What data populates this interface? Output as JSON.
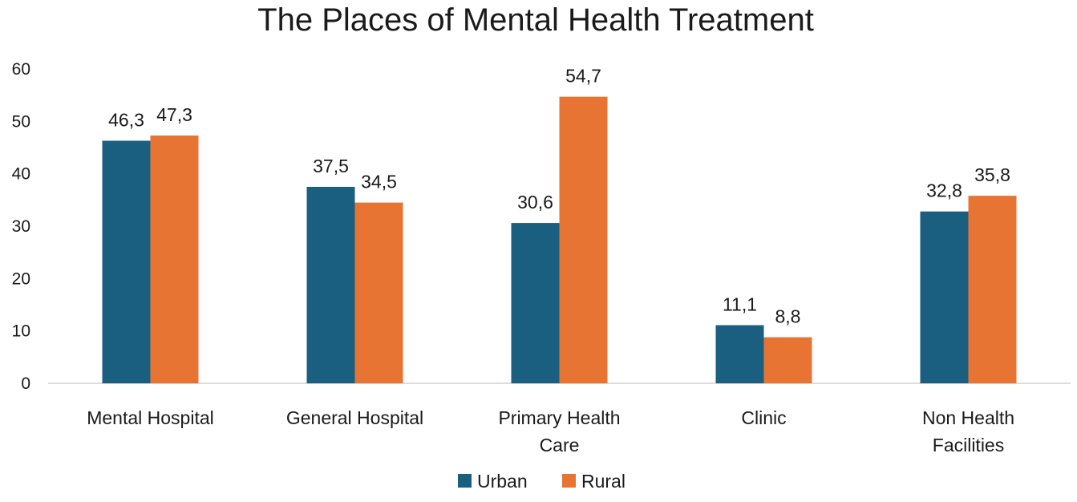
{
  "chart_data": {
    "type": "bar",
    "title": "The Places of Mental Health Treatment",
    "xlabel": "",
    "ylabel": "",
    "categories": [
      [
        "Mental Hospital"
      ],
      [
        "General Hospital"
      ],
      [
        "Primary Health",
        "Care"
      ],
      [
        "Clinic"
      ],
      [
        "Non Health",
        "Facilities"
      ]
    ],
    "series": [
      {
        "name": "Urban",
        "color": "#1b5f80",
        "values": [
          46.3,
          37.5,
          30.6,
          11.1,
          32.8
        ],
        "labels": [
          "46,3",
          "37,5",
          "30,6",
          "11,1",
          "32,8"
        ]
      },
      {
        "name": "Rural",
        "color": "#e87434",
        "values": [
          47.3,
          34.5,
          54.7,
          8.8,
          35.8
        ],
        "labels": [
          "47,3",
          "34,5",
          "54,7",
          "8,8",
          "35,8"
        ]
      }
    ],
    "ylim": [
      0,
      60
    ],
    "yticks": [
      0,
      10,
      20,
      30,
      40,
      50,
      60
    ],
    "grid": false,
    "legend": "bottom-center"
  }
}
